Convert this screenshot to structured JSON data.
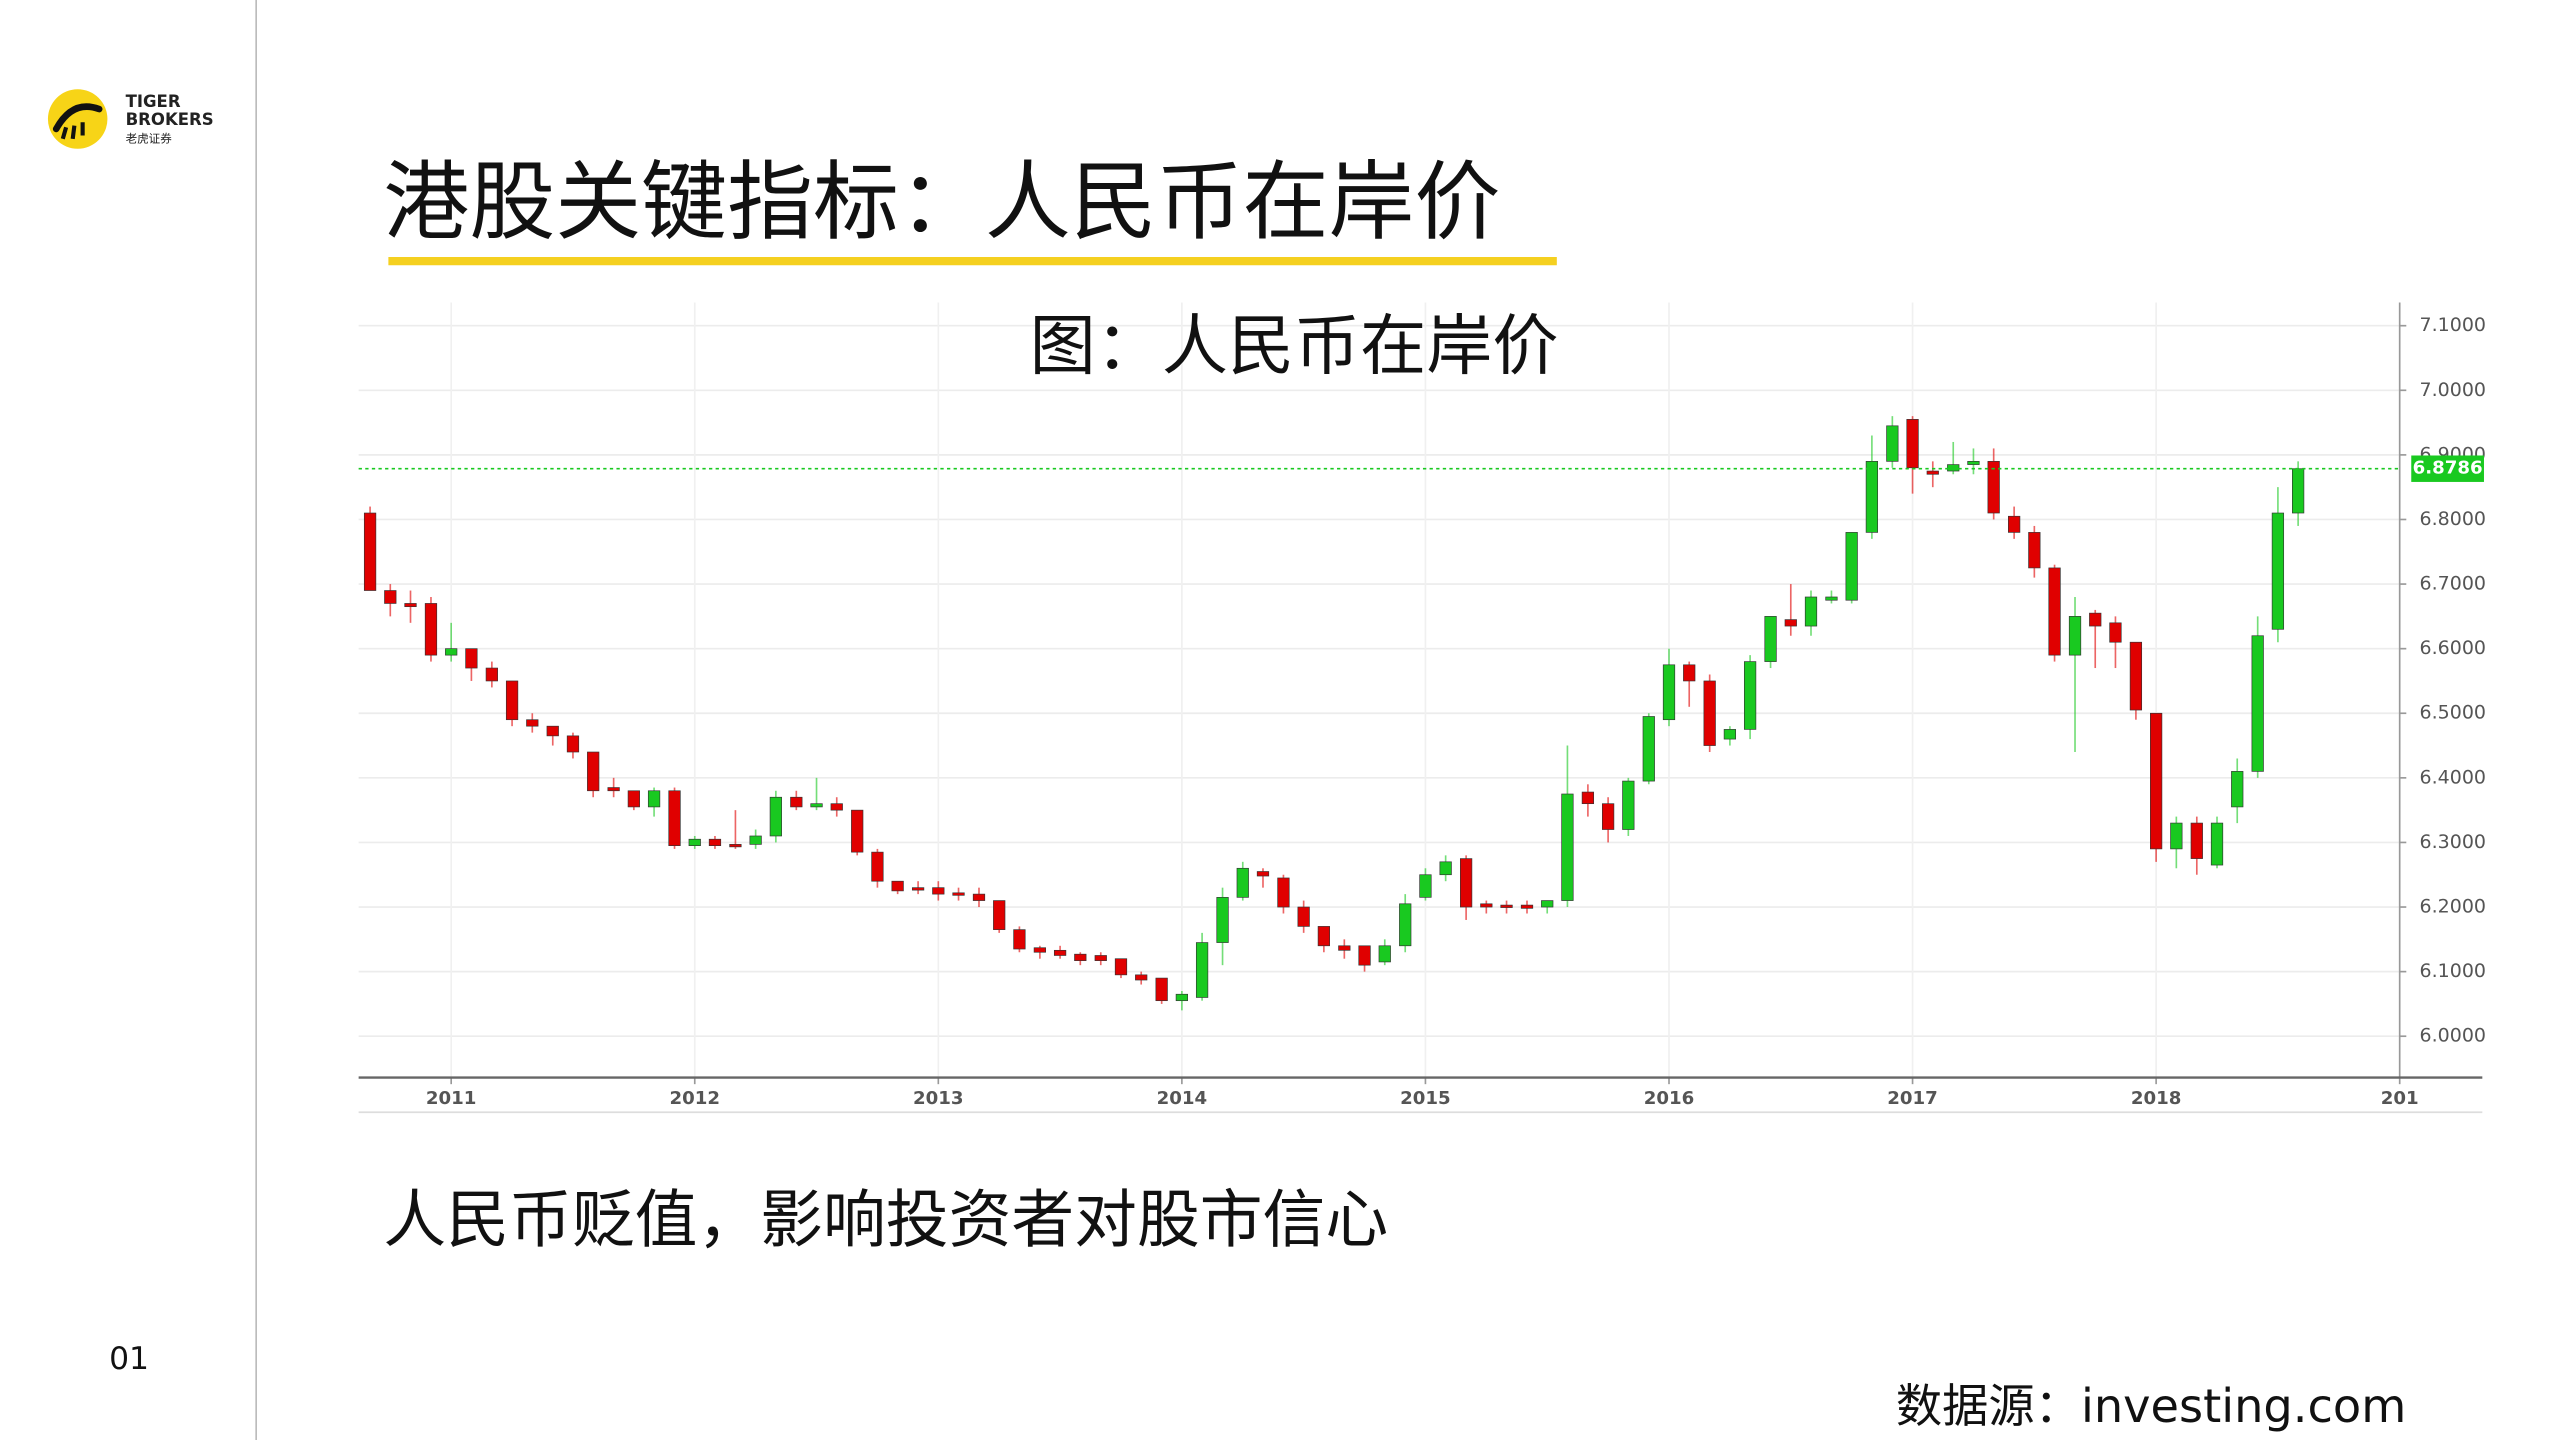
{
  "slide": {
    "logo_line1": "TIGER",
    "logo_line2": "BROKERS",
    "logo_line3": "老虎证券",
    "title": "港股关键指标：人民币在岸价",
    "caption": "人民币贬值，影响投资者对股市信心",
    "page_number": "01",
    "source": "数据源：investing.com"
  },
  "chart_data": {
    "type": "candlestick",
    "title": "图：人民币在岸价",
    "x": [
      2010.667,
      2010.75,
      2010.833,
      2010.917,
      2011,
      2011.083,
      2011.167,
      2011.25,
      2011.333,
      2011.417,
      2011.5,
      2011.583,
      2011.667,
      2011.75,
      2011.833,
      2011.917,
      2012,
      2012.083,
      2012.167,
      2012.25,
      2012.333,
      2012.417,
      2012.5,
      2012.583,
      2012.667,
      2012.75,
      2012.833,
      2012.917,
      2013,
      2013.083,
      2013.167,
      2013.25,
      2013.333,
      2013.417,
      2013.5,
      2013.583,
      2013.667,
      2013.75,
      2013.833,
      2013.917,
      2014,
      2014.083,
      2014.167,
      2014.25,
      2014.333,
      2014.417,
      2014.5,
      2014.583,
      2014.667,
      2014.75,
      2014.833,
      2014.917,
      2015,
      2015.083,
      2015.167,
      2015.25,
      2015.333,
      2015.417,
      2015.5,
      2015.583,
      2015.667,
      2015.75,
      2015.833,
      2015.917,
      2016,
      2016.083,
      2016.167,
      2016.25,
      2016.333,
      2016.417,
      2016.5,
      2016.583,
      2016.667,
      2016.75,
      2016.833,
      2016.917,
      2017,
      2017.083,
      2017.167,
      2017.25,
      2017.333,
      2017.417,
      2017.5,
      2017.583,
      2017.667,
      2017.75,
      2017.833,
      2017.917,
      2018,
      2018.083,
      2018.167,
      2018.25,
      2018.333,
      2018.417,
      2018.5,
      2018.583
    ],
    "open": [
      6.81,
      6.69,
      6.67,
      6.67,
      6.59,
      6.6,
      6.57,
      6.55,
      6.49,
      6.48,
      6.465,
      6.44,
      6.385,
      6.38,
      6.355,
      6.38,
      6.295,
      6.305,
      6.297,
      6.297,
      6.31,
      6.37,
      6.355,
      6.36,
      6.35,
      6.285,
      6.24,
      6.23,
      6.23,
      6.222,
      6.22,
      6.21,
      6.165,
      6.137,
      6.133,
      6.127,
      6.125,
      6.12,
      6.095,
      6.09,
      6.055,
      6.06,
      6.145,
      6.215,
      6.255,
      6.245,
      6.2,
      6.17,
      6.14,
      6.14,
      6.115,
      6.14,
      6.215,
      6.25,
      6.275,
      6.205,
      6.203,
      6.203,
      6.2,
      6.21,
      6.378,
      6.36,
      6.32,
      6.395,
      6.49,
      6.575,
      6.55,
      6.46,
      6.475,
      6.58,
      6.645,
      6.635,
      6.675,
      6.675,
      6.78,
      6.89,
      6.955,
      6.875,
      6.875,
      6.885,
      6.89,
      6.805,
      6.78,
      6.725,
      6.59,
      6.655,
      6.64,
      6.61,
      6.5,
      6.29,
      6.33,
      6.265,
      6.355,
      6.41,
      6.63,
      6.81
    ],
    "high": [
      6.82,
      6.7,
      6.69,
      6.68,
      6.64,
      6.6,
      6.58,
      6.55,
      6.5,
      6.48,
      6.47,
      6.44,
      6.4,
      6.38,
      6.385,
      6.385,
      6.31,
      6.31,
      6.35,
      6.32,
      6.38,
      6.38,
      6.4,
      6.37,
      6.35,
      6.29,
      6.24,
      6.24,
      6.24,
      6.23,
      6.23,
      6.21,
      6.17,
      6.14,
      6.14,
      6.13,
      6.13,
      6.12,
      6.1,
      6.09,
      6.07,
      6.16,
      6.23,
      6.27,
      6.26,
      6.25,
      6.21,
      6.17,
      6.15,
      6.14,
      6.15,
      6.22,
      6.26,
      6.28,
      6.28,
      6.21,
      6.21,
      6.21,
      6.21,
      6.45,
      6.39,
      6.37,
      6.4,
      6.5,
      6.6,
      6.58,
      6.56,
      6.48,
      6.59,
      6.65,
      6.7,
      6.69,
      6.69,
      6.78,
      6.93,
      6.96,
      6.96,
      6.89,
      6.92,
      6.91,
      6.91,
      6.82,
      6.79,
      6.73,
      6.68,
      6.66,
      6.65,
      6.61,
      6.5,
      6.34,
      6.34,
      6.34,
      6.43,
      6.65,
      6.85,
      6.89
    ],
    "low": [
      6.69,
      6.65,
      6.64,
      6.58,
      6.58,
      6.55,
      6.54,
      6.48,
      6.47,
      6.45,
      6.43,
      6.37,
      6.37,
      6.35,
      6.34,
      6.29,
      6.29,
      6.29,
      6.29,
      6.29,
      6.3,
      6.35,
      6.35,
      6.34,
      6.28,
      6.23,
      6.22,
      6.22,
      6.21,
      6.21,
      6.2,
      6.16,
      6.13,
      6.12,
      6.12,
      6.11,
      6.11,
      6.09,
      6.08,
      6.05,
      6.04,
      6.055,
      6.11,
      6.21,
      6.23,
      6.19,
      6.16,
      6.13,
      6.12,
      6.1,
      6.11,
      6.13,
      6.21,
      6.24,
      6.18,
      6.19,
      6.19,
      6.19,
      6.19,
      6.2,
      6.34,
      6.3,
      6.31,
      6.39,
      6.48,
      6.51,
      6.44,
      6.45,
      6.46,
      6.57,
      6.62,
      6.62,
      6.67,
      6.67,
      6.77,
      6.88,
      6.84,
      6.85,
      6.87,
      6.87,
      6.8,
      6.77,
      6.71,
      6.58,
      6.44,
      6.57,
      6.57,
      6.49,
      6.27,
      6.26,
      6.25,
      6.26,
      6.33,
      6.4,
      6.61,
      6.79
    ],
    "close": [
      6.69,
      6.67,
      6.665,
      6.59,
      6.6,
      6.57,
      6.55,
      6.49,
      6.48,
      6.465,
      6.44,
      6.38,
      6.38,
      6.355,
      6.38,
      6.295,
      6.305,
      6.295,
      6.295,
      6.31,
      6.37,
      6.355,
      6.36,
      6.35,
      6.285,
      6.24,
      6.225,
      6.228,
      6.22,
      6.22,
      6.21,
      6.165,
      6.135,
      6.13,
      6.125,
      6.117,
      6.117,
      6.095,
      6.087,
      6.055,
      6.065,
      6.145,
      6.215,
      6.26,
      6.248,
      6.2,
      6.17,
      6.14,
      6.133,
      6.11,
      6.14,
      6.205,
      6.25,
      6.27,
      6.2,
      6.2,
      6.2,
      6.198,
      6.21,
      6.375,
      6.36,
      6.32,
      6.395,
      6.495,
      6.575,
      6.55,
      6.45,
      6.475,
      6.58,
      6.65,
      6.635,
      6.68,
      6.68,
      6.78,
      6.89,
      6.945,
      6.88,
      6.87,
      6.885,
      6.89,
      6.81,
      6.78,
      6.725,
      6.59,
      6.65,
      6.635,
      6.61,
      6.505,
      6.29,
      6.33,
      6.275,
      6.33,
      6.41,
      6.62,
      6.81,
      6.8786
    ],
    "up_color": "#19c920",
    "down_color": "#e00000",
    "last_value": 6.8786,
    "last_color": "#19c920",
    "xlim": [
      2010.62,
      2019.0
    ],
    "xticks": [
      2011,
      2012,
      2013,
      2014,
      2015,
      2016,
      2017,
      2018,
      {
        "value": 2019,
        "label": "201"
      }
    ],
    "ylim": [
      5.936,
      7.136
    ],
    "yticks": [
      {
        "value": 6.0,
        "label": "6.0000"
      },
      {
        "value": 6.1,
        "label": "6.1000"
      },
      {
        "value": 6.2,
        "label": "6.2000"
      },
      {
        "value": 6.3,
        "label": "6.3000"
      },
      {
        "value": 6.4,
        "label": "6.4000"
      },
      {
        "value": 6.5,
        "label": "6.5000"
      },
      {
        "value": 6.6,
        "label": "6.6000"
      },
      {
        "value": 6.7,
        "label": "6.7000"
      },
      {
        "value": 6.8,
        "label": "6.8000"
      },
      {
        "value": 6.9,
        "label": "6.9000"
      },
      {
        "value": 7.0,
        "label": "7.0000"
      },
      {
        "value": 7.1,
        "label": "7.1000"
      }
    ],
    "grid": true
  }
}
